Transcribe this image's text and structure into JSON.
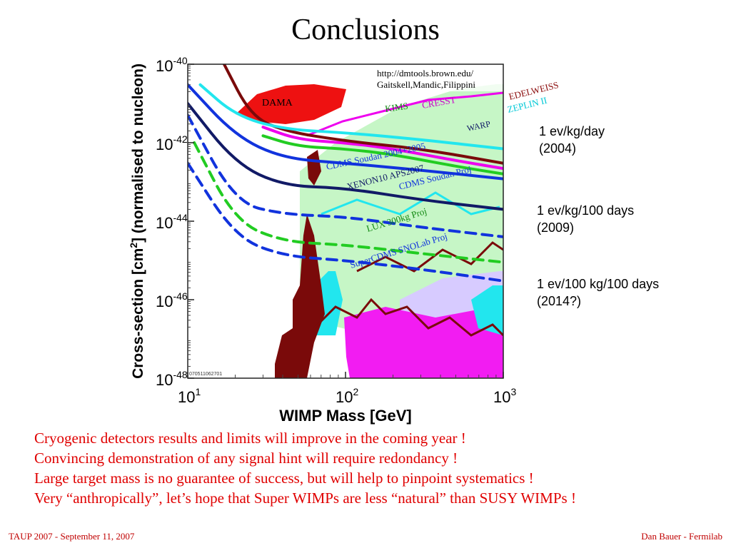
{
  "slide": {
    "title": "Conclusions",
    "side_notes": [
      {
        "line1": "1 ev/kg/day",
        "line2": "(2004)"
      },
      {
        "line1": "1 ev/kg/100 days",
        "line2": "(2009)"
      },
      {
        "line1": "1 ev/100 kg/100 days",
        "line2": "(2014?)"
      }
    ],
    "conclusions": [
      "Cryogenic detectors results and limits will improve in the coming year !",
      "Convincing demonstration of any signal hint will require redondancy !",
      "Large target mass is no guarantee of success, but will help to pinpoint systematics !",
      "Very “anthropically”, let’s hope that Super WIMPs are less “natural” than SUSY WIMPs !"
    ],
    "footer_left": "TAUP 2007 - September 11, 2007",
    "footer_right": "Dan Bauer - Fermilab"
  },
  "chart_data": {
    "type": "line",
    "xscale": "log",
    "yscale": "log",
    "xlabel": "WIMP Mass [GeV]",
    "ylabel_main": "Cross-section [cm",
    "ylabel_sup": "2",
    "ylabel_tail": "] (normalised to nucleon)",
    "xlim": [
      10,
      1000
    ],
    "ylim": [
      1e-48,
      1e-40
    ],
    "x_ticks": [
      {
        "value": 10,
        "base": "10",
        "exp": "1"
      },
      {
        "value": 100,
        "base": "10",
        "exp": "2"
      },
      {
        "value": 1000,
        "base": "10",
        "exp": "3"
      }
    ],
    "y_ticks": [
      {
        "value": 1e-40,
        "base": "10",
        "exp": "-40"
      },
      {
        "value": 1e-42,
        "base": "10",
        "exp": "-42"
      },
      {
        "value": 1e-44,
        "base": "10",
        "exp": "-44"
      },
      {
        "value": 1e-46,
        "base": "10",
        "exp": "-46"
      },
      {
        "value": 1e-48,
        "base": "10",
        "exp": "-48"
      }
    ],
    "source_text": [
      "http://dmtools.brown.edu/",
      "Gaitskell,Mandic,Filippini"
    ],
    "plot_id": "070511062701",
    "colors": {
      "green": "#22cc22",
      "darkgreen": "#118811",
      "magenta": "#ee00ee",
      "red": "#ee1111",
      "cyan": "#22e6ee",
      "blue": "#1133dd",
      "navy": "#111a66",
      "maroon": "#7a0a0a",
      "lightgreen": "#c6f6c6",
      "lavender": "#d7cbff"
    },
    "labels": [
      {
        "text": "DAMA",
        "color": "#000000"
      },
      {
        "text": "KIMS",
        "color": "#118811"
      },
      {
        "text": "CRESST",
        "color": "#cc00cc"
      },
      {
        "text": "EDELWEISS",
        "color": "#8a0a0a"
      },
      {
        "text": "ZEPLIN II",
        "color": "#00c8d6"
      },
      {
        "text": "WARP",
        "color": "#111a66"
      },
      {
        "text": "CDMS Soudan 2004+2005",
        "color": "#1133dd"
      },
      {
        "text": "XENON10 APS2007",
        "color": "#111a66"
      },
      {
        "text": "CDMS Soudan Proj",
        "color": "#1133dd"
      },
      {
        "text": "LUX 300kg Proj",
        "color": "#118811"
      },
      {
        "text": "SuperCDMS SNOLab Proj",
        "color": "#1133dd"
      }
    ],
    "series": [
      {
        "color": "#22cc22",
        "dashed": false,
        "x": [
          30,
          50,
          100,
          200,
          500,
          1000
        ],
        "y": [
          1.5e-42,
          8e-43,
          7e-43,
          5e-43,
          2.5e-43,
          1.6e-43
        ]
      },
      {
        "color": "#ee00ee",
        "dashed": false,
        "x": [
          30,
          50,
          100,
          200,
          500,
          1000
        ],
        "y": [
          2.5e-42,
          1.2e-42,
          1e-42,
          7e-43,
          3.5e-43,
          2.2e-43
        ]
      },
      {
        "color": "#7a0a0a",
        "dashed": false,
        "x": [
          17,
          25,
          40,
          100,
          300,
          1000
        ],
        "y": [
          1e-40,
          5e-42,
          2e-42,
          1.1e-42,
          7e-43,
          3e-43
        ]
      },
      {
        "color": "#22e6ee",
        "dashed": false,
        "x": [
          12,
          20,
          40,
          100,
          300,
          1000
        ],
        "y": [
          3e-41,
          5e-42,
          2.2e-42,
          1.8e-42,
          1.2e-42,
          7e-43
        ]
      },
      {
        "color": "#1133dd",
        "dashed": false,
        "x": [
          10,
          20,
          40,
          100,
          300,
          1000
        ],
        "y": [
          3e-41,
          1.5e-42,
          4e-43,
          3e-43,
          2e-43,
          1.2e-43
        ]
      },
      {
        "color": "#111a66",
        "dashed": false,
        "x": [
          10,
          20,
          40,
          100,
          300,
          1000
        ],
        "y": [
          1e-41,
          3e-43,
          8e-44,
          7e-44,
          3.5e-44,
          2e-44
        ]
      },
      {
        "color": "#1133dd",
        "dashed": true,
        "x": [
          10,
          20,
          40,
          100,
          300,
          1000
        ],
        "y": [
          5e-42,
          3e-44,
          1.5e-44,
          1.3e-44,
          7e-45,
          4e-45
        ]
      },
      {
        "color": "#22cc22",
        "dashed": true,
        "x": [
          11,
          20,
          40,
          100,
          300,
          1000
        ],
        "y": [
          1e-42,
          1e-44,
          3e-45,
          2.5e-45,
          1.5e-45,
          9e-46
        ]
      },
      {
        "color": "#1133dd",
        "dashed": true,
        "x": [
          10,
          20,
          40,
          100,
          300,
          1000
        ],
        "y": [
          3e-43,
          4e-45,
          1.3e-45,
          1e-45,
          6e-46,
          3e-46
        ]
      }
    ]
  }
}
